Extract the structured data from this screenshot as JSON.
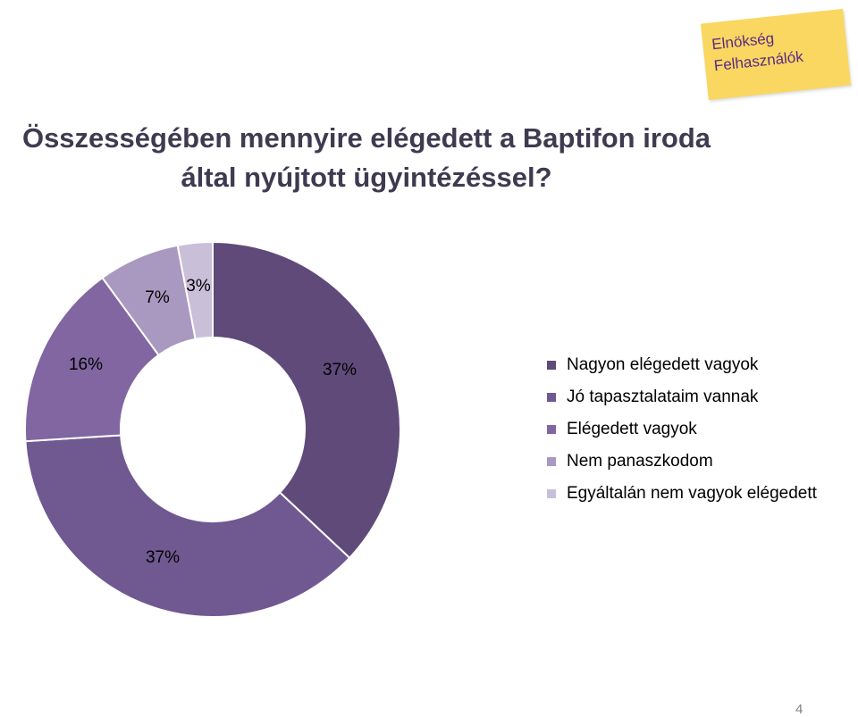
{
  "slide": {
    "title_lines": [
      "Összességében mennyire elégedett a Baptifon iroda",
      "által nyújtott ügyintézéssel?"
    ],
    "note": {
      "line1": "Elnökség",
      "line2": "Felhasználók"
    },
    "page_number": "4"
  },
  "chart_data": {
    "type": "pie",
    "donut": true,
    "title": "",
    "legend_position": "right",
    "categories": [
      "Nagyon elégedett vagyok",
      "Jó tapasztalataim vannak",
      "Elégedett vagyok",
      "Nem panaszkodom",
      "Egyáltalán nem vagyok elégedett"
    ],
    "values": [
      37,
      37,
      16,
      7,
      3
    ],
    "labels": [
      "37%",
      "37%",
      "16%",
      "7%",
      "3%"
    ],
    "colors": [
      "#5f4a7a",
      "#705891",
      "#8166a2",
      "#a998bf",
      "#c9bfd9"
    ]
  }
}
